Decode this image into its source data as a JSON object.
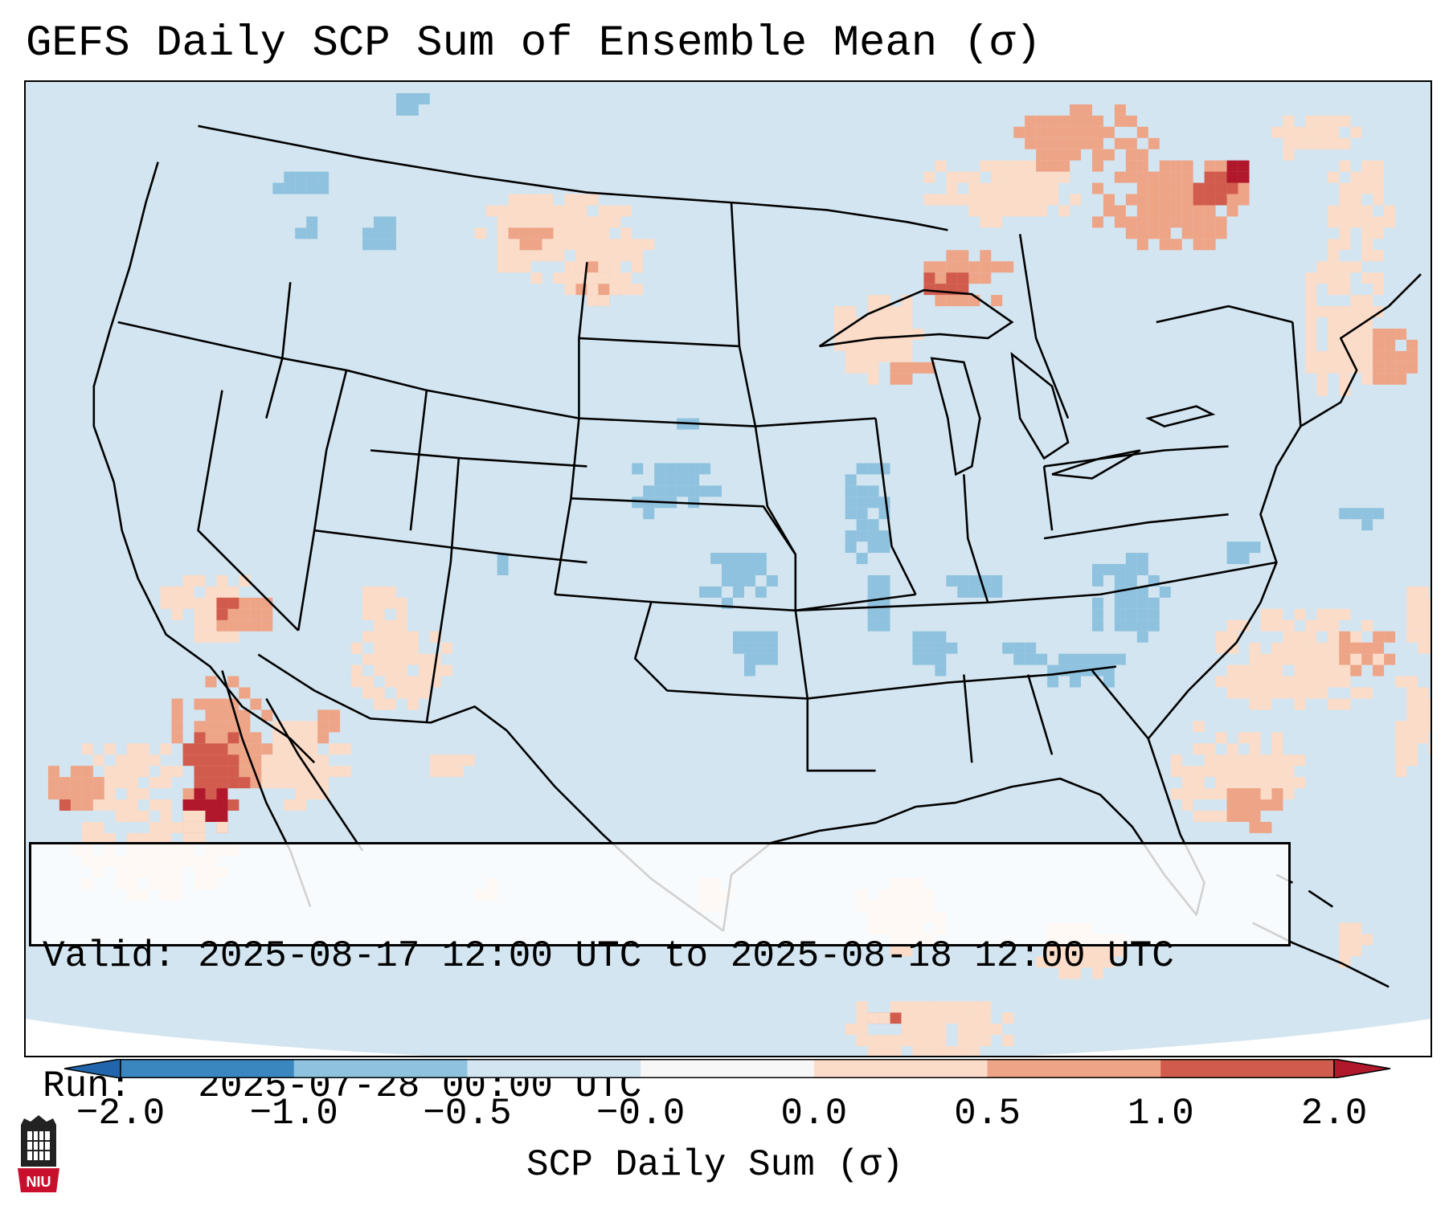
{
  "title": "GEFS Daily SCP Sum of Ensemble Mean (σ)",
  "info": {
    "valid_label": "Valid:",
    "valid_value": "2025-08-17 12:00 UTC to 2025-08-18 12:00 UTC",
    "run_label": "Run:",
    "run_value": "2025-07-28 00:00 UTC"
  },
  "colorbar": {
    "label": "SCP Daily Sum (σ)",
    "ticks": [
      "−2.0",
      "−1.0",
      "−0.5",
      "−0.0",
      "0.0",
      "0.5",
      "1.0",
      "2.0"
    ],
    "colors": [
      "#3a87c0",
      "#8fc2de",
      "#d3e5f0",
      "#f7f7f7",
      "#fbdcc9",
      "#eea487",
      "#d15c4d"
    ],
    "under_color": "#2166ac",
    "over_color": "#b2182b"
  },
  "map": {
    "background_color": "#d3e5f0",
    "levels": {
      "neg_light": "#8fc2de",
      "pos_light": "#fbdcc9",
      "pos_mid": "#eea487",
      "pos_high": "#d15c4d",
      "pos_max": "#b2182b"
    },
    "hotspot_descriptions": []
  },
  "logo_text": "NIU",
  "chart_data": {
    "type": "heatmap",
    "title": "GEFS Daily SCP Sum of Ensemble Mean (σ)",
    "colorbar_label": "SCP Daily Sum (σ)",
    "colorbar_bounds": [
      -2.0,
      -1.0,
      -0.5,
      -0.0,
      0.0,
      0.5,
      1.0,
      2.0
    ],
    "extend": "both"
  }
}
